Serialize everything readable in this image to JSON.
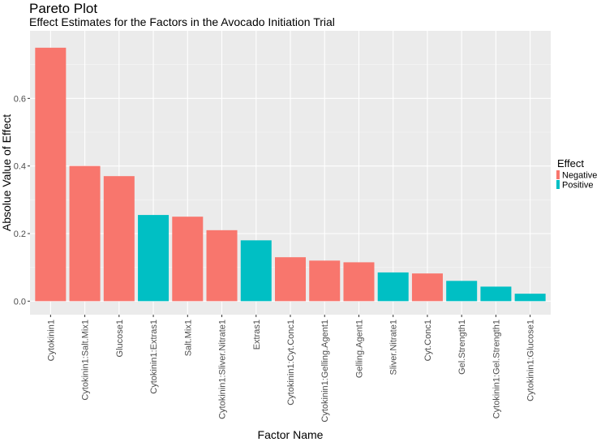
{
  "chart_data": {
    "type": "bar",
    "title": "Pareto Plot",
    "subtitle": "Effect Estimates for the Factors in the Avocado Initiation Trial",
    "xlabel": "Factor Name",
    "ylabel": "Absolue Value of Effect",
    "ylim": [
      -0.04,
      0.8
    ],
    "yticks": [
      "0.0",
      "0.2",
      "0.4",
      "0.6"
    ],
    "ytick_values": [
      0,
      0.2,
      0.4,
      0.6
    ],
    "grid": true,
    "legend": {
      "title": "Effect",
      "position": "right",
      "entries": [
        {
          "label": "Negative",
          "color": "#F8766D"
        },
        {
          "label": "Positive",
          "color": "#00BFC4"
        }
      ]
    },
    "categories": [
      "Cytokinin1",
      "Cytokinin1:Salt.Mix1",
      "Glucose1",
      "Cytokinin1:Extras1",
      "Salt.Mix1",
      "Cytokinin1:Sliver.Nitrate1",
      "Extras1",
      "Cytokinin1:Cyt.Conc1",
      "Cytokinin1:Gelling.Agent1",
      "Gelling.Agent1",
      "Sliver.Nitrate1",
      "Cyt.Conc1",
      "Gel.Strength1",
      "Cytokinin1:Gel.Strength1",
      "Cytokinin1:Glucose1"
    ],
    "values": [
      0.75,
      0.4,
      0.37,
      0.255,
      0.25,
      0.21,
      0.18,
      0.13,
      0.12,
      0.115,
      0.085,
      0.082,
      0.06,
      0.043,
      0.022
    ],
    "effect": [
      "Negative",
      "Negative",
      "Negative",
      "Positive",
      "Negative",
      "Negative",
      "Positive",
      "Negative",
      "Negative",
      "Negative",
      "Positive",
      "Negative",
      "Positive",
      "Positive",
      "Positive"
    ]
  },
  "colors": {
    "panel_background": "#EBEBEB",
    "grid_major": "#FFFFFF",
    "grid_minor": "#F5F5F5",
    "negative": "#F8766D",
    "positive": "#00BFC4"
  }
}
